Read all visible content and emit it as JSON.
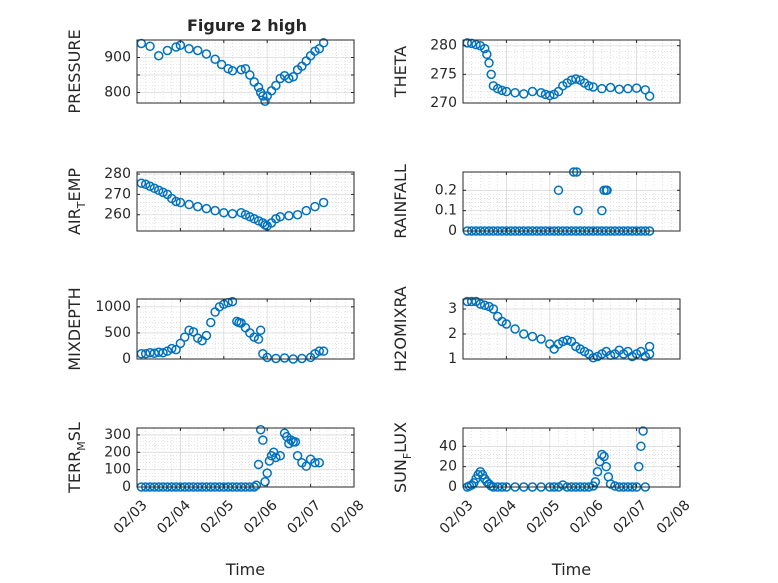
{
  "figure_title": "Figure 2 high",
  "colors": {
    "marker": "#0072BD",
    "axis": "#262626",
    "grid": "#d9d9d9"
  },
  "x_axis": {
    "label": "Time",
    "ticks": [
      3,
      4,
      5,
      6,
      7,
      8
    ],
    "tick_labels": [
      "02/03",
      "02/04",
      "02/05",
      "02/06",
      "02/07",
      "02/08"
    ],
    "xlim": [
      3,
      8
    ]
  },
  "chart_data": [
    {
      "type": "scatter",
      "title": "Figure 2 high",
      "ylabel": "PRESSURE",
      "ylabel_parts": [
        "PRESSURE"
      ],
      "yticks": [
        800,
        850,
        900,
        950
      ],
      "ytick_labels": [
        "800",
        "",
        "900",
        ""
      ],
      "ylim": [
        770,
        950
      ],
      "show_xticklabels": false,
      "x": [
        3.1,
        3.3,
        3.5,
        3.7,
        3.9,
        4.0,
        4.2,
        4.4,
        4.6,
        4.8,
        4.95,
        5.1,
        5.2,
        5.4,
        5.5,
        5.6,
        5.7,
        5.8,
        5.85,
        5.9,
        5.95,
        6.0,
        6.1,
        6.2,
        6.3,
        6.4,
        6.5,
        6.6,
        6.7,
        6.8,
        6.9,
        7.0,
        7.1,
        7.2,
        7.3
      ],
      "y": [
        940,
        932,
        905,
        920,
        930,
        935,
        925,
        920,
        910,
        895,
        880,
        868,
        862,
        865,
        868,
        850,
        830,
        815,
        800,
        790,
        775,
        790,
        805,
        820,
        840,
        848,
        840,
        845,
        865,
        875,
        890,
        905,
        918,
        925,
        942
      ]
    },
    {
      "type": "scatter",
      "title": "",
      "ylabel": "THETA",
      "ylabel_parts": [
        "THETA"
      ],
      "yticks": [
        270,
        275,
        280
      ],
      "ytick_labels": [
        "270",
        "275",
        "280"
      ],
      "ylim": [
        270,
        281
      ],
      "show_xticklabels": false,
      "x": [
        3.1,
        3.2,
        3.3,
        3.4,
        3.5,
        3.55,
        3.6,
        3.65,
        3.7,
        3.8,
        3.9,
        4.0,
        4.2,
        4.4,
        4.6,
        4.8,
        4.9,
        5.0,
        5.1,
        5.2,
        5.3,
        5.4,
        5.5,
        5.6,
        5.7,
        5.8,
        5.9,
        6.0,
        6.2,
        6.4,
        6.6,
        6.8,
        7.0,
        7.2,
        7.3
      ],
      "y": [
        280.5,
        280.4,
        280.2,
        280,
        279.5,
        278.5,
        277,
        275,
        273,
        272.5,
        272.2,
        272,
        271.8,
        271.6,
        272,
        271.8,
        271.5,
        271.3,
        271.5,
        272,
        273,
        273.5,
        274,
        274.2,
        274,
        273.5,
        273,
        272.8,
        272.5,
        272.7,
        272.4,
        272.5,
        272.6,
        272.3,
        271.2
      ]
    },
    {
      "type": "scatter",
      "title": "",
      "ylabel": "AIR_TEMP",
      "ylabel_parts": [
        "AIR",
        "T",
        "EMP"
      ],
      "yticks": [
        250,
        260,
        270,
        280
      ],
      "ytick_labels": [
        "",
        "260",
        "270",
        "280"
      ],
      "ylim": [
        252,
        281
      ],
      "show_xticklabels": false,
      "x": [
        3.1,
        3.2,
        3.3,
        3.4,
        3.5,
        3.6,
        3.7,
        3.8,
        3.9,
        4.0,
        4.2,
        4.4,
        4.6,
        4.8,
        5.0,
        5.2,
        5.4,
        5.5,
        5.6,
        5.7,
        5.8,
        5.9,
        5.95,
        6.0,
        6.1,
        6.2,
        6.3,
        6.5,
        6.7,
        6.9,
        7.1,
        7.3
      ],
      "y": [
        275.5,
        275,
        274,
        273,
        272,
        271,
        270,
        268,
        266.5,
        266,
        265,
        264,
        263,
        262,
        261,
        260.5,
        261,
        260,
        259,
        258,
        257,
        256,
        255,
        254.5,
        256,
        258,
        259,
        259.5,
        260,
        262,
        264,
        266
      ]
    },
    {
      "type": "scatter",
      "title": "",
      "ylabel": "RAINFALL",
      "ylabel_parts": [
        "RAINFALL"
      ],
      "yticks": [
        0,
        0.1,
        0.2
      ],
      "ytick_labels": [
        "0",
        "0.1",
        "0.2"
      ],
      "ylim": [
        0,
        0.29
      ],
      "show_xticklabels": false,
      "x": [
        3.1,
        3.2,
        3.3,
        3.4,
        3.5,
        3.6,
        3.7,
        3.8,
        3.9,
        4.0,
        4.1,
        4.2,
        4.3,
        4.4,
        4.5,
        4.6,
        4.7,
        4.8,
        4.9,
        5.0,
        5.1,
        5.2,
        5.3,
        5.4,
        5.5,
        5.6,
        5.7,
        5.8,
        5.9,
        6.0,
        6.1,
        6.2,
        6.3,
        6.4,
        6.5,
        6.6,
        6.7,
        6.8,
        6.9,
        7.0,
        7.1,
        7.2,
        7.3,
        5.2,
        5.55,
        5.62,
        5.65,
        6.2,
        6.25,
        6.3,
        6.32
      ],
      "y": [
        0,
        0,
        0,
        0,
        0,
        0,
        0,
        0,
        0,
        0,
        0,
        0,
        0,
        0,
        0,
        0,
        0,
        0,
        0,
        0,
        0,
        0,
        0,
        0,
        0,
        0,
        0,
        0,
        0,
        0,
        0,
        0,
        0,
        0,
        0,
        0,
        0,
        0,
        0,
        0,
        0,
        0,
        0,
        0.2,
        0.29,
        0.29,
        0.1,
        0.1,
        0.2,
        0.2,
        0.2
      ]
    },
    {
      "type": "scatter",
      "title": "",
      "ylabel": "MIXDEPTH",
      "ylabel_parts": [
        "MIXDEPTH"
      ],
      "yticks": [
        0,
        500,
        1000
      ],
      "ytick_labels": [
        "0",
        "500",
        "1000"
      ],
      "ylim": [
        0,
        1150
      ],
      "show_xticklabels": false,
      "x": [
        3.1,
        3.2,
        3.3,
        3.4,
        3.5,
        3.6,
        3.7,
        3.8,
        3.9,
        4.0,
        4.1,
        4.2,
        4.3,
        4.4,
        4.5,
        4.6,
        4.7,
        4.8,
        4.9,
        5.0,
        5.1,
        5.2,
        5.3,
        5.35,
        5.4,
        5.5,
        5.6,
        5.7,
        5.8,
        5.85,
        5.9,
        6.0,
        6.2,
        6.4,
        6.6,
        6.8,
        7.0,
        7.1,
        7.2,
        7.3
      ],
      "y": [
        100,
        100,
        120,
        110,
        130,
        120,
        150,
        200,
        180,
        300,
        420,
        550,
        520,
        400,
        350,
        450,
        700,
        900,
        1000,
        1050,
        1080,
        1100,
        720,
        700,
        690,
        600,
        500,
        420,
        380,
        550,
        100,
        30,
        10,
        20,
        0,
        10,
        30,
        100,
        150,
        150
      ]
    },
    {
      "type": "scatter",
      "title": "",
      "ylabel": "H2OMIXRA",
      "ylabel_parts": [
        "H2OMIXRA"
      ],
      "yticks": [
        1,
        2,
        3
      ],
      "ytick_labels": [
        "1",
        "2",
        "3"
      ],
      "ylim": [
        1,
        3.4
      ],
      "show_xticklabels": false,
      "x": [
        3.1,
        3.2,
        3.3,
        3.4,
        3.5,
        3.6,
        3.7,
        3.8,
        3.9,
        4.0,
        4.2,
        4.4,
        4.6,
        4.8,
        5.0,
        5.1,
        5.2,
        5.3,
        5.4,
        5.5,
        5.6,
        5.7,
        5.8,
        5.9,
        6.0,
        6.1,
        6.2,
        6.3,
        6.4,
        6.5,
        6.6,
        6.7,
        6.8,
        6.9,
        7.0,
        7.1,
        7.2,
        7.3,
        7.3
      ],
      "y": [
        3.3,
        3.3,
        3.3,
        3.2,
        3.15,
        3.1,
        3.0,
        2.7,
        2.5,
        2.4,
        2.2,
        2.0,
        1.9,
        1.8,
        1.6,
        1.4,
        1.6,
        1.7,
        1.75,
        1.7,
        1.5,
        1.4,
        1.3,
        1.2,
        1.05,
        1.1,
        1.2,
        1.3,
        1.15,
        1.2,
        1.35,
        1.2,
        1.3,
        1.1,
        1.2,
        1.3,
        1.1,
        1.5,
        1.2
      ]
    },
    {
      "type": "scatter",
      "title": "",
      "ylabel": "TERR_MSL",
      "ylabel_parts": [
        "TERR",
        "M",
        "SL"
      ],
      "yticks": [
        0,
        100,
        200,
        300
      ],
      "ytick_labels": [
        "0",
        "100",
        "200",
        "300"
      ],
      "ylim": [
        0,
        340
      ],
      "show_xticklabels": true,
      "x": [
        3.1,
        3.2,
        3.3,
        3.4,
        3.5,
        3.6,
        3.7,
        3.8,
        3.9,
        4.0,
        4.1,
        4.2,
        4.3,
        4.4,
        4.5,
        4.6,
        4.7,
        4.8,
        4.9,
        5.0,
        5.1,
        5.2,
        5.3,
        5.4,
        5.5,
        5.6,
        5.7,
        5.75,
        5.8,
        5.85,
        5.9,
        5.95,
        6.0,
        6.05,
        6.1,
        6.15,
        6.2,
        6.3,
        6.4,
        6.45,
        6.5,
        6.55,
        6.6,
        6.65,
        6.7,
        6.8,
        6.9,
        7.0,
        7.1,
        7.2
      ],
      "y": [
        0,
        0,
        0,
        0,
        0,
        0,
        0,
        0,
        0,
        0,
        0,
        0,
        0,
        0,
        0,
        0,
        0,
        0,
        0,
        0,
        0,
        0,
        0,
        0,
        0,
        0,
        0,
        10,
        130,
        330,
        270,
        30,
        80,
        150,
        180,
        200,
        170,
        180,
        310,
        290,
        250,
        270,
        260,
        260,
        180,
        140,
        120,
        160,
        140,
        140
      ]
    },
    {
      "type": "scatter",
      "title": "",
      "ylabel": "SUN_FLUX",
      "ylabel_parts": [
        "SUN",
        "F",
        "LUX"
      ],
      "yticks": [
        0,
        20,
        40
      ],
      "ytick_labels": [
        "0",
        "20",
        "40"
      ],
      "ylim": [
        0,
        58
      ],
      "show_xticklabels": true,
      "x": [
        3.1,
        3.15,
        3.2,
        3.25,
        3.3,
        3.35,
        3.4,
        3.45,
        3.5,
        3.55,
        3.6,
        3.65,
        3.7,
        3.8,
        3.9,
        4.0,
        4.2,
        4.4,
        4.6,
        4.8,
        5.0,
        5.1,
        5.2,
        5.3,
        5.4,
        5.5,
        5.6,
        5.7,
        5.8,
        5.9,
        6.0,
        6.05,
        6.1,
        6.15,
        6.2,
        6.25,
        6.3,
        6.35,
        6.4,
        6.5,
        6.6,
        6.7,
        6.8,
        6.9,
        7.0,
        7.05,
        7.1,
        7.15,
        7.2
      ],
      "y": [
        0,
        1,
        2,
        4,
        8,
        12,
        15,
        12,
        8,
        5,
        3,
        1,
        0,
        0,
        0,
        0,
        0,
        0,
        0,
        0,
        0,
        0,
        0,
        2,
        0,
        0,
        0,
        0,
        0,
        0,
        1,
        5,
        15,
        25,
        32,
        30,
        20,
        10,
        3,
        1,
        0,
        0,
        0,
        0,
        0,
        20,
        40,
        55,
        0
      ]
    }
  ]
}
